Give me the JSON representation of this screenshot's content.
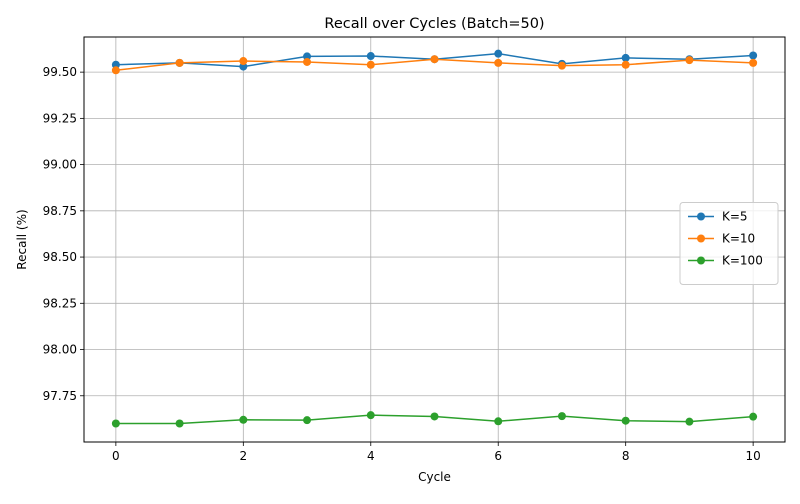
{
  "chart_data": {
    "type": "line",
    "title": "Recall over Cycles (Batch=50)",
    "xlabel": "Cycle",
    "ylabel": "Recall (%)",
    "x": [
      0,
      1,
      2,
      3,
      4,
      5,
      6,
      7,
      8,
      9,
      10
    ],
    "xlim": [
      -0.5,
      10.5
    ],
    "ylim": [
      97.5,
      99.69
    ],
    "x_ticks": [
      0,
      2,
      4,
      6,
      8,
      10
    ],
    "x_tick_labels": [
      "0",
      "2",
      "4",
      "6",
      "8",
      "10"
    ],
    "y_ticks": [
      97.75,
      98.0,
      98.25,
      98.5,
      98.75,
      99.0,
      99.25,
      99.5
    ],
    "y_tick_labels": [
      "97.75",
      "98.00",
      "98.25",
      "98.50",
      "98.75",
      "99.00",
      "99.25",
      "99.50"
    ],
    "grid": true,
    "legend_position": "center-right",
    "series": [
      {
        "name": "K=5",
        "color": "#1f77b4",
        "values": [
          99.54,
          99.55,
          99.53,
          99.585,
          99.587,
          99.57,
          99.6,
          99.545,
          99.577,
          99.57,
          99.59
        ]
      },
      {
        "name": "K=10",
        "color": "#ff7f0e",
        "values": [
          99.51,
          99.55,
          99.56,
          99.555,
          99.54,
          99.57,
          99.55,
          99.535,
          99.54,
          99.565,
          99.55
        ]
      },
      {
        "name": "K=100",
        "color": "#2ca02c",
        "values": [
          97.6,
          97.6,
          97.62,
          97.618,
          97.645,
          97.638,
          97.612,
          97.64,
          97.615,
          97.61,
          97.637
        ]
      }
    ]
  }
}
